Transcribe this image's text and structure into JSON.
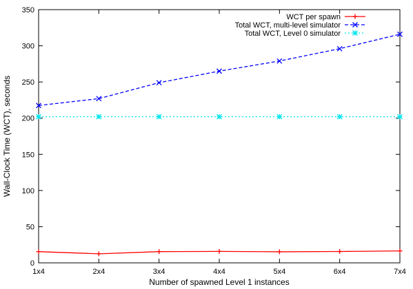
{
  "chart_data": {
    "type": "line",
    "xlabel": "Number of spawned Level 1 instances",
    "ylabel": "Wall-Clock Time (WCT), seconds",
    "categories": [
      "1x4",
      "2x4",
      "3x4",
      "4x4",
      "5x4",
      "6x4",
      "7x4"
    ],
    "yticks": [
      0,
      50,
      100,
      150,
      200,
      250,
      300,
      350
    ],
    "ylim": [
      0,
      350
    ],
    "grid": false,
    "legend_position": "top-right",
    "series": [
      {
        "name": "WCT per spawn",
        "color": "#ff0000",
        "dash": "solid",
        "marker": "plus",
        "values": [
          15.5,
          12.5,
          15.5,
          15.8,
          15.3,
          15.7,
          16.5
        ]
      },
      {
        "name": "Total WCT, multi-level simulator",
        "color": "#0000ff",
        "dash": "dashed",
        "marker": "x",
        "values": [
          217.5,
          227,
          249,
          265,
          279,
          296,
          316
        ]
      },
      {
        "name": "Total WCT, Level 0 simulator",
        "color": "#00e5ee",
        "dash": "dotted",
        "marker": "star",
        "values": [
          202,
          202,
          202,
          202,
          202,
          202,
          202
        ]
      }
    ]
  }
}
